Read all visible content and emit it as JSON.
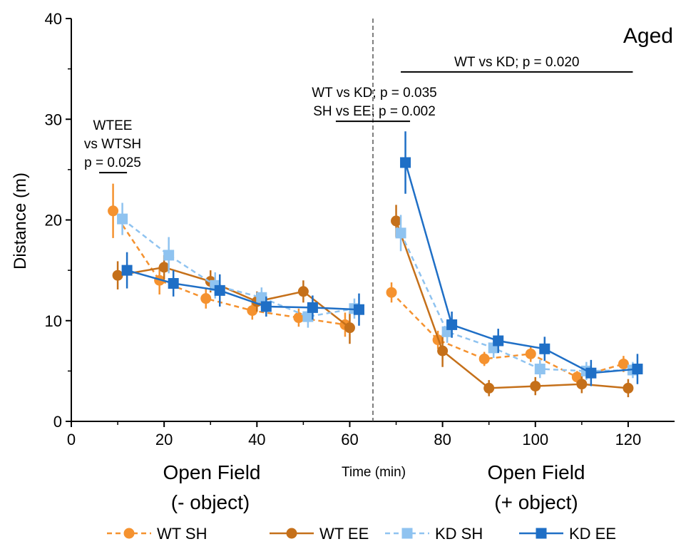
{
  "chart_data": {
    "type": "line",
    "panel_label": "Aged",
    "xlabel": "Time (min)",
    "ylabel": "Distance (m)",
    "xlim": [
      0,
      130
    ],
    "ylim": [
      0,
      40
    ],
    "x_ticks": [
      0,
      20,
      40,
      60,
      80,
      100,
      120
    ],
    "y_ticks": [
      0,
      10,
      20,
      30,
      40
    ],
    "divider_x": 65,
    "section_labels": [
      {
        "line1": "Open Field",
        "line2": "(- object)"
      },
      {
        "line1": "Open Field",
        "line2": "(+ object)"
      }
    ],
    "grid": false,
    "legend_position": "bottom",
    "series": [
      {
        "name": "WT SH",
        "color": "#f5922f",
        "marker": "circle",
        "dash": true,
        "segments": [
          {
            "x": [
              9,
              19,
              29,
              39,
              49,
              59
            ],
            "y": [
              20.9,
              14.0,
              12.2,
              11.0,
              10.3,
              9.6
            ],
            "err": [
              2.7,
              1.4,
              1.0,
              0.9,
              0.9,
              1.2
            ]
          },
          {
            "x": [
              69,
              79,
              89,
              99,
              109,
              119
            ],
            "y": [
              12.8,
              8.1,
              6.2,
              6.7,
              4.4,
              5.7
            ],
            "err": [
              1.0,
              0.9,
              0.7,
              0.8,
              0.6,
              0.8
            ]
          }
        ]
      },
      {
        "name": "WT EE",
        "color": "#c5701a",
        "marker": "circle",
        "dash": false,
        "segments": [
          {
            "x": [
              10,
              20,
              30,
              40,
              50,
              60
            ],
            "y": [
              14.5,
              15.3,
              13.9,
              11.9,
              12.9,
              9.3
            ],
            "err": [
              1.4,
              1.2,
              1.1,
              1.0,
              1.1,
              1.6
            ]
          },
          {
            "x": [
              70,
              80,
              90,
              100,
              110,
              120
            ],
            "y": [
              19.9,
              7.0,
              3.3,
              3.5,
              3.7,
              3.3
            ],
            "err": [
              1.6,
              1.6,
              0.8,
              0.9,
              0.9,
              0.9
            ]
          }
        ]
      },
      {
        "name": "KD SH",
        "color": "#8fc3f0",
        "marker": "square",
        "dash": true,
        "segments": [
          {
            "x": [
              11,
              21,
              31,
              41,
              51,
              61
            ],
            "y": [
              20.1,
              16.5,
              13.5,
              12.3,
              10.4,
              11.2
            ],
            "err": [
              1.6,
              1.8,
              1.3,
              1.0,
              1.1,
              1.0
            ]
          },
          {
            "x": [
              71,
              81,
              91,
              101,
              111,
              121
            ],
            "y": [
              18.7,
              8.9,
              7.3,
              5.2,
              5.0,
              5.1
            ],
            "err": [
              1.8,
              1.1,
              1.0,
              0.9,
              0.9,
              0.8
            ]
          }
        ]
      },
      {
        "name": "KD EE",
        "color": "#1f6fc6",
        "marker": "square",
        "dash": false,
        "segments": [
          {
            "x": [
              12,
              22,
              32,
              42,
              52,
              62
            ],
            "y": [
              15.0,
              13.7,
              13.0,
              11.4,
              11.3,
              11.1
            ],
            "err": [
              1.8,
              1.3,
              1.6,
              1.0,
              1.2,
              1.6
            ]
          },
          {
            "x": [
              72,
              82,
              92,
              102,
              112,
              122
            ],
            "y": [
              25.7,
              9.6,
              8.0,
              7.2,
              4.8,
              5.2
            ],
            "err": [
              3.1,
              1.3,
              1.2,
              1.2,
              1.3,
              1.5
            ]
          }
        ]
      }
    ],
    "annotations": [
      {
        "lines": [
          "WTEE",
          "vs WTSH",
          "p = 0.025"
        ],
        "bar_x": [
          6,
          12
        ],
        "bar_y": 24.7
      },
      {
        "lines": [
          "WT vs KD; p = 0.035",
          "SH vs EE; p = 0.002"
        ],
        "bar_x": [
          57,
          73
        ],
        "bar_y": 29.8
      },
      {
        "lines": [
          "WT vs KD; p = 0.020"
        ],
        "bar_x": [
          71,
          121
        ],
        "bar_y": 34.7
      }
    ]
  }
}
